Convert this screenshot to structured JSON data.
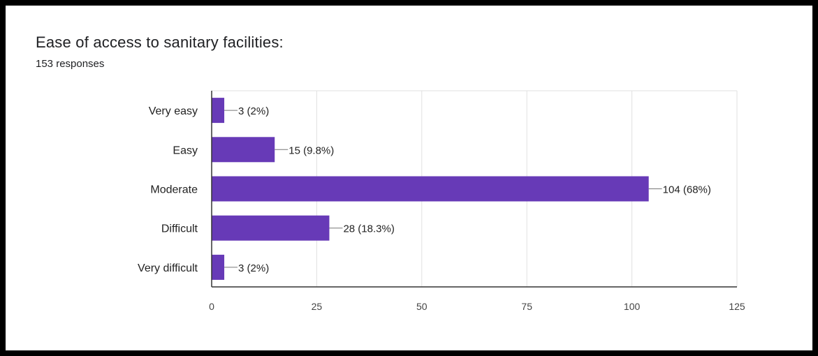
{
  "chart_data": {
    "type": "bar",
    "orientation": "horizontal",
    "title": "Ease of access to sanitary facilities:",
    "subtitle": "153 responses",
    "categories": [
      "Very easy",
      "Easy",
      "Moderate",
      "Difficult",
      "Very difficult"
    ],
    "values": [
      3,
      15,
      104,
      28,
      3
    ],
    "data_labels": [
      "3 (2%)",
      "15 (9.8%)",
      "104 (68%)",
      "28 (18.3%)",
      "3 (2%)"
    ],
    "xlim": [
      0,
      125
    ],
    "xticks": [
      0,
      25,
      50,
      75,
      100,
      125
    ],
    "grid": true,
    "bar_color": "#673ab7"
  }
}
